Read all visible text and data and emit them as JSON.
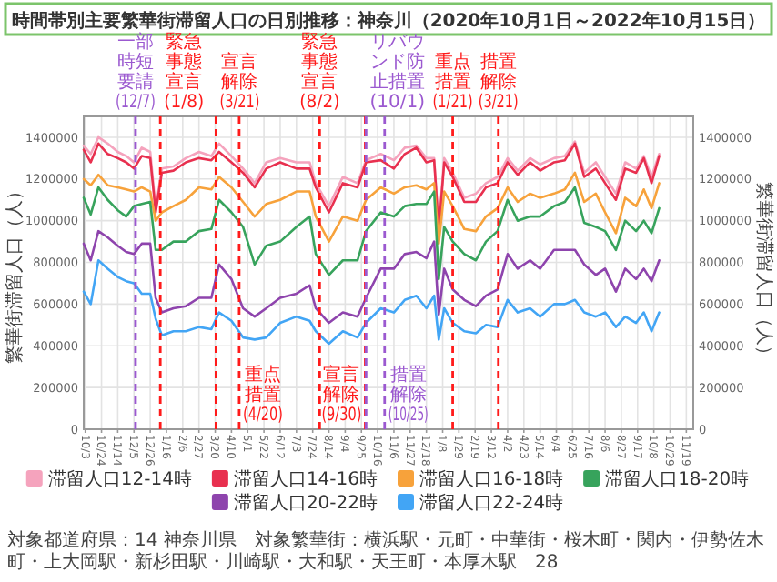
{
  "chart_data": {
    "type": "line",
    "title": "時間帯別主要繁華街滞留人口の日別推移：神奈川（2020年10月1日～2022年10月15日）",
    "ylabel": "繁華街滞留人口（人）",
    "y2label": "繁華街滞留人口（人）",
    "x": [
      "2020-10-01",
      "2020-10-10",
      "2020-10-20",
      "2020-11-01",
      "2020-11-14",
      "2020-11-25",
      "2020-12-05",
      "2020-12-15",
      "2020-12-26",
      "2021-01-02",
      "2021-01-10",
      "2021-01-25",
      "2021-02-10",
      "2021-02-27",
      "2021-03-15",
      "2021-03-25",
      "2021-04-10",
      "2021-04-25",
      "2021-05-10",
      "2021-05-25",
      "2021-06-12",
      "2021-07-03",
      "2021-07-20",
      "2021-07-28",
      "2021-08-14",
      "2021-09-01",
      "2021-09-20",
      "2021-10-01",
      "2021-10-20",
      "2021-11-06",
      "2021-11-20",
      "2021-12-05",
      "2021-12-18",
      "2021-12-28",
      "2022-01-03",
      "2022-01-10",
      "2022-01-21",
      "2022-02-05",
      "2022-02-20",
      "2022-03-05",
      "2022-03-20",
      "2022-04-02",
      "2022-04-15",
      "2022-05-01",
      "2022-05-14",
      "2022-06-01",
      "2022-06-15",
      "2022-06-28",
      "2022-07-10",
      "2022-07-25",
      "2022-08-06",
      "2022-08-20",
      "2022-09-01",
      "2022-09-15",
      "2022-09-25",
      "2022-10-05",
      "2022-10-15"
    ],
    "series": [
      {
        "name": "滞留人口12-14時",
        "color": "#f5a3bd",
        "values": [
          1360000,
          1320000,
          1400000,
          1370000,
          1330000,
          1310000,
          1280000,
          1350000,
          1330000,
          1060000,
          1250000,
          1260000,
          1300000,
          1330000,
          1310000,
          1370000,
          1310000,
          1250000,
          1180000,
          1280000,
          1300000,
          1280000,
          1280000,
          1180000,
          1070000,
          1210000,
          1180000,
          1290000,
          1320000,
          1290000,
          1350000,
          1360000,
          1300000,
          1300000,
          970000,
          1300000,
          1230000,
          1110000,
          1130000,
          1180000,
          1210000,
          1300000,
          1240000,
          1300000,
          1270000,
          1300000,
          1310000,
          1380000,
          1230000,
          1280000,
          1210000,
          1130000,
          1280000,
          1250000,
          1310000,
          1210000,
          1320000
        ]
      },
      {
        "name": "滞留人口14-16時",
        "color": "#e8304f",
        "values": [
          1340000,
          1280000,
          1370000,
          1320000,
          1300000,
          1280000,
          1250000,
          1310000,
          1300000,
          1040000,
          1230000,
          1240000,
          1280000,
          1300000,
          1290000,
          1330000,
          1280000,
          1230000,
          1160000,
          1250000,
          1280000,
          1250000,
          1250000,
          1160000,
          1040000,
          1180000,
          1160000,
          1280000,
          1290000,
          1250000,
          1320000,
          1350000,
          1280000,
          1290000,
          950000,
          1280000,
          1210000,
          1090000,
          1090000,
          1160000,
          1180000,
          1280000,
          1220000,
          1280000,
          1240000,
          1280000,
          1290000,
          1370000,
          1210000,
          1250000,
          1180000,
          1100000,
          1250000,
          1230000,
          1300000,
          1180000,
          1310000
        ]
      },
      {
        "name": "滞留人口16-18時",
        "color": "#f7a23b",
        "values": [
          1200000,
          1170000,
          1220000,
          1170000,
          1160000,
          1150000,
          1140000,
          1160000,
          1140000,
          1000000,
          1040000,
          1070000,
          1100000,
          1160000,
          1150000,
          1210000,
          1160000,
          1090000,
          1020000,
          1080000,
          1100000,
          1140000,
          1140000,
          1020000,
          900000,
          1020000,
          1000000,
          1100000,
          1160000,
          1130000,
          1160000,
          1170000,
          1150000,
          1180000,
          890000,
          1140000,
          1070000,
          960000,
          950000,
          1020000,
          1060000,
          1160000,
          1090000,
          1130000,
          1110000,
          1130000,
          1150000,
          1230000,
          1090000,
          1130000,
          1040000,
          940000,
          1110000,
          1070000,
          1150000,
          1060000,
          1180000
        ]
      },
      {
        "name": "滞留人口18-20時",
        "color": "#37a35c",
        "values": [
          1110000,
          1030000,
          1160000,
          1100000,
          1050000,
          1020000,
          1070000,
          1080000,
          1090000,
          860000,
          860000,
          900000,
          900000,
          950000,
          960000,
          1100000,
          1040000,
          970000,
          790000,
          880000,
          900000,
          970000,
          1020000,
          840000,
          740000,
          810000,
          810000,
          950000,
          1040000,
          1020000,
          1070000,
          1080000,
          1080000,
          1140000,
          720000,
          970000,
          900000,
          840000,
          810000,
          900000,
          950000,
          1100000,
          1000000,
          1020000,
          1020000,
          1070000,
          1090000,
          1160000,
          990000,
          970000,
          950000,
          860000,
          1000000,
          950000,
          1000000,
          940000,
          1060000
        ]
      },
      {
        "name": "滞留人口20-22時",
        "color": "#8e44ad",
        "values": [
          890000,
          810000,
          950000,
          920000,
          880000,
          850000,
          840000,
          890000,
          890000,
          630000,
          560000,
          580000,
          590000,
          630000,
          630000,
          790000,
          720000,
          580000,
          540000,
          580000,
          630000,
          650000,
          690000,
          580000,
          510000,
          560000,
          540000,
          630000,
          770000,
          770000,
          840000,
          850000,
          820000,
          900000,
          550000,
          770000,
          670000,
          620000,
          590000,
          640000,
          670000,
          840000,
          770000,
          810000,
          770000,
          860000,
          860000,
          860000,
          790000,
          740000,
          770000,
          660000,
          770000,
          720000,
          770000,
          710000,
          810000
        ]
      },
      {
        "name": "滞留人口22-24時",
        "color": "#42a5f5",
        "values": [
          660000,
          600000,
          810000,
          770000,
          730000,
          710000,
          700000,
          650000,
          650000,
          530000,
          450000,
          470000,
          470000,
          490000,
          480000,
          560000,
          520000,
          440000,
          430000,
          440000,
          510000,
          540000,
          520000,
          470000,
          410000,
          470000,
          440000,
          510000,
          580000,
          560000,
          620000,
          640000,
          580000,
          640000,
          430000,
          580000,
          510000,
          470000,
          460000,
          500000,
          490000,
          620000,
          560000,
          580000,
          540000,
          600000,
          600000,
          620000,
          560000,
          540000,
          560000,
          490000,
          540000,
          510000,
          560000,
          470000,
          560000
        ]
      }
    ],
    "xlim": [
      "2020-10-01",
      "2022-11-28"
    ],
    "xticks": [
      {
        "value": "2020-10-03",
        "label": "10/3"
      },
      {
        "value": "2020-10-24",
        "label": "10/24"
      },
      {
        "value": "2020-11-14",
        "label": "11/14"
      },
      {
        "value": "2020-12-05",
        "label": "12/5"
      },
      {
        "value": "2020-12-26",
        "label": "12/26"
      },
      {
        "value": "2021-01-16",
        "label": "1/16"
      },
      {
        "value": "2021-02-06",
        "label": "2/6"
      },
      {
        "value": "2021-02-27",
        "label": "2/27"
      },
      {
        "value": "2021-03-20",
        "label": "3/20"
      },
      {
        "value": "2021-04-10",
        "label": "4/10"
      },
      {
        "value": "2021-05-01",
        "label": "5/1"
      },
      {
        "value": "2021-05-22",
        "label": "5/22"
      },
      {
        "value": "2021-06-12",
        "label": "6/12"
      },
      {
        "value": "2021-07-03",
        "label": "7/3"
      },
      {
        "value": "2021-07-24",
        "label": "7/24"
      },
      {
        "value": "2021-08-14",
        "label": "8/14"
      },
      {
        "value": "2021-09-04",
        "label": "9/4"
      },
      {
        "value": "2021-09-25",
        "label": "9/25"
      },
      {
        "value": "2021-10-16",
        "label": "10/16"
      },
      {
        "value": "2021-11-06",
        "label": "11/6"
      },
      {
        "value": "2021-11-27",
        "label": "11/27"
      },
      {
        "value": "2021-12-18",
        "label": "12/18"
      },
      {
        "value": "2022-01-08",
        "label": "1/8"
      },
      {
        "value": "2022-01-29",
        "label": "1/29"
      },
      {
        "value": "2022-02-19",
        "label": "2/19"
      },
      {
        "value": "2022-03-12",
        "label": "3/12"
      },
      {
        "value": "2022-04-02",
        "label": "4/2"
      },
      {
        "value": "2022-04-23",
        "label": "4/23"
      },
      {
        "value": "2022-05-14",
        "label": "5/14"
      },
      {
        "value": "2022-06-04",
        "label": "6/4"
      },
      {
        "value": "2022-06-25",
        "label": "6/25"
      },
      {
        "value": "2022-07-16",
        "label": "7/16"
      },
      {
        "value": "2022-08-06",
        "label": "8/6"
      },
      {
        "value": "2022-08-27",
        "label": "8/27"
      },
      {
        "value": "2022-09-17",
        "label": "9/17"
      },
      {
        "value": "2022-10-08",
        "label": "10/8"
      },
      {
        "value": "2022-10-29",
        "label": "10/29"
      },
      {
        "value": "2022-11-19",
        "label": "11/19"
      }
    ],
    "ylim": [
      0,
      1500000
    ],
    "yticks": [
      0,
      200000,
      400000,
      600000,
      800000,
      1000000,
      1200000,
      1400000
    ],
    "y2lim": [
      0,
      1500000
    ],
    "y2ticks": [
      0,
      200000,
      400000,
      600000,
      800000,
      1000000,
      1200000,
      1400000
    ],
    "grid": true,
    "legend": "bottom",
    "ref_lines": [
      {
        "axis": "x",
        "value": "2020-12-07",
        "label": "一部時短要請(12/7)",
        "color": "#9b59d0",
        "line_style": "dashed"
      },
      {
        "axis": "x",
        "value": "2021-01-08",
        "label": "緊急事態宣言(1/8)",
        "color": "#ff1a1a",
        "line_style": "dashed"
      },
      {
        "axis": "x",
        "value": "2021-03-21",
        "label": "宣言解除(3/21)",
        "color": "#ff1a1a",
        "line_style": "dashed"
      },
      {
        "axis": "x",
        "value": "2021-04-20",
        "label": "重点措置(4/20)",
        "color": "#ff1a1a",
        "line_style": "dashed"
      },
      {
        "axis": "x",
        "value": "2021-08-02",
        "label": "緊急事態宣言(8/2)",
        "color": "#ff1a1a",
        "line_style": "dashed"
      },
      {
        "axis": "x",
        "value": "2021-09-30",
        "label": "宣言解除(9/30)",
        "color": "#ff1a1a",
        "line_style": "dashed"
      },
      {
        "axis": "x",
        "value": "2021-10-01",
        "label": "リバウンド防止措置(10/1)",
        "color": "#9b59d0",
        "line_style": "dashed"
      },
      {
        "axis": "x",
        "value": "2021-10-25",
        "label": "措置解除(10/25)",
        "color": "#9b59d0",
        "line_style": "dashed"
      },
      {
        "axis": "x",
        "value": "2022-01-21",
        "label": "重点措置(1/21)",
        "color": "#ff1a1a",
        "line_style": "dashed"
      },
      {
        "axis": "x",
        "value": "2022-03-21",
        "label": "措置解除(3/21)",
        "color": "#ff1a1a",
        "line_style": "dashed"
      }
    ],
    "annotations": [
      "対象都道府県：14 神奈川県",
      "対象繁華街：横浜駅・元町・中華街・桜木町・関内・伊勢佐木町・上大岡駅・新杉田駅・川崎駅・大和駅・天王町・本厚木駅",
      "28"
    ]
  }
}
